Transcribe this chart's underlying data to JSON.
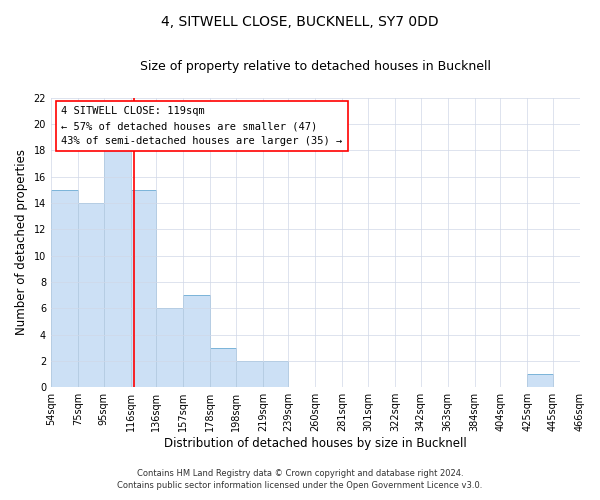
{
  "title": "4, SITWELL CLOSE, BUCKNELL, SY7 0DD",
  "subtitle": "Size of property relative to detached houses in Bucknell",
  "xlabel": "Distribution of detached houses by size in Bucknell",
  "ylabel": "Number of detached properties",
  "bin_edges": [
    54,
    75,
    95,
    116,
    136,
    157,
    178,
    198,
    219,
    239,
    260,
    281,
    301,
    322,
    342,
    363,
    384,
    404,
    425,
    445,
    466
  ],
  "bar_heights": [
    15,
    14,
    18,
    15,
    6,
    7,
    3,
    2,
    2,
    0,
    0,
    0,
    0,
    0,
    0,
    0,
    0,
    0,
    1,
    0
  ],
  "bar_facecolor": "#cce0f5",
  "bar_edgecolor": "#7ab4d8",
  "grid_color": "#d0d8e8",
  "property_line_x": 119,
  "property_line_color": "red",
  "annotation_line1": "4 SITWELL CLOSE: 119sqm",
  "annotation_line2": "← 57% of detached houses are smaller (47)",
  "annotation_line3": "43% of semi-detached houses are larger (35) →",
  "ylim": [
    0,
    22
  ],
  "yticks": [
    0,
    2,
    4,
    6,
    8,
    10,
    12,
    14,
    16,
    18,
    20,
    22
  ],
  "footnote1": "Contains HM Land Registry data © Crown copyright and database right 2024.",
  "footnote2": "Contains public sector information licensed under the Open Government Licence v3.0.",
  "title_fontsize": 10,
  "subtitle_fontsize": 9,
  "tick_label_fontsize": 7,
  "ylabel_fontsize": 8.5,
  "xlabel_fontsize": 8.5,
  "annotation_fontsize": 7.5,
  "footnote_fontsize": 6
}
